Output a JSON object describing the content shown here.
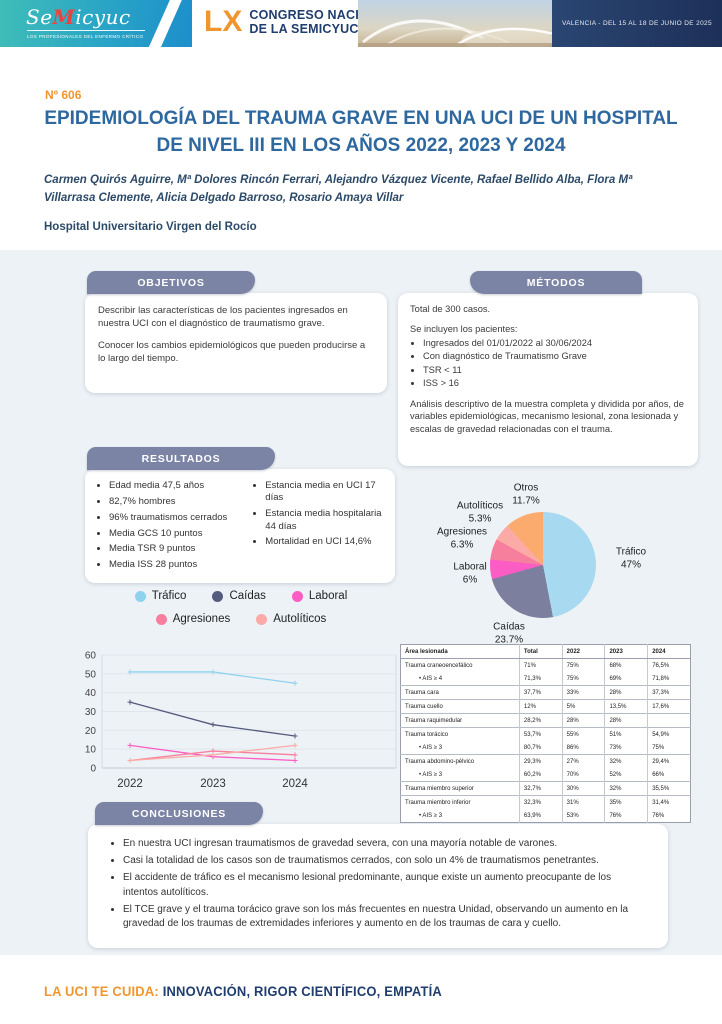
{
  "header": {
    "logo": {
      "name_se": "Se",
      "name_m": "M",
      "name_rest": "icyuc",
      "tagline": "LOS PROFESIONALES DEL ENFERMO CRÍTICO"
    },
    "congress": {
      "numeral": "LX",
      "line1": "CONGRESO NACIONAL",
      "line2": "DE LA SEMICYUC"
    },
    "banner": "VALENCIA - DEL 15 AL 18 DE JUNIO DE 2025"
  },
  "poster": {
    "number": "Nº 606",
    "title": "EPIDEMIOLOGÍA DEL TRAUMA GRAVE EN UNA UCI DE UN HOSPITAL DE NIVEL III EN LOS AÑOS 2022, 2023 Y 2024",
    "authors": "Carmen Quirós Aguirre, Mª Dolores Rincón Ferrari, Alejandro Vázquez Vicente, Rafael Bellido Alba, Flora Mª Villarrasa Clemente, Alicia Delgado Barroso, Rosario Amaya Villar",
    "affiliation": "Hospital Universitario Virgen del Rocío"
  },
  "sections": {
    "objetivos": {
      "title": "OBJETIVOS",
      "paragraphs": [
        "Describir las características de los pacientes ingresados en nuestra UCI con el diagnóstico de traumatismo grave.",
        "Conocer los cambios epidemiológicos que pueden producirse a lo largo del tiempo."
      ]
    },
    "metodos": {
      "title": "MÉTODOS",
      "total": "Total de 300 casos.",
      "include_intro": "Se incluyen los pacientes:",
      "bullets": [
        "Ingresados del 01/01/2022 al 30/06/2024",
        "Con diagnóstico de Traumatismo Grave",
        "TSR < 11",
        "ISS > 16"
      ],
      "analysis": "Análisis descriptivo de la muestra completa y dividida por años, de variables epidemiológicas, mecanismo lesional, zona lesionada y escalas de gravedad relacionadas con el trauma."
    },
    "resultados": {
      "title": "RESULTADOS",
      "bullets_left": [
        "Edad media 47,5 años",
        "82,7% hombres",
        "96% traumatismos cerrados",
        "Media GCS 10 puntos",
        "Media TSR 9 puntos",
        "Media ISS 28 puntos"
      ],
      "bullets_right": [
        "Estancia media en UCI 17 días",
        "Estancia media hospitalaria 44 días",
        "Mortalidad en UCI 14,6%"
      ]
    },
    "conclusiones": {
      "title": "CONCLUSIONES",
      "bullets": [
        "En nuestra UCI ingresan traumatismos de gravedad severa, con una mayoría notable de varones.",
        "Casi la totalidad de los casos son de traumatismos cerrados, con solo un 4% de traumatismos penetrantes.",
        "El accidente de tráfico es el mecanismo lesional predominante, aunque existe un aumento preocupante de los intentos autolíticos.",
        "El TCE grave y el trauma torácico grave son los más frecuentes en nuestra Unidad, observando un aumento en la gravedad de los traumas de extremidades inferiores y aumento en de los traumas de cara y cuello."
      ]
    }
  },
  "chart_data": [
    {
      "type": "pie",
      "title": "",
      "slices": [
        {
          "label": "Tráfico",
          "pct": "47%",
          "value": 47,
          "color": "#a7d9f0"
        },
        {
          "label": "Caídas",
          "pct": "23.7%",
          "value": 23.7,
          "color": "#7c7f9d"
        },
        {
          "label": "Laboral",
          "pct": "6%",
          "value": 6,
          "color": "#fb5dc4"
        },
        {
          "label": "Agresiones",
          "pct": "6.3%",
          "value": 6.3,
          "color": "#f77f9e"
        },
        {
          "label": "Autolíticos",
          "pct": "5.3%",
          "value": 5.3,
          "color": "#fcaaa5"
        },
        {
          "label": "Otros",
          "pct": "11.7%",
          "value": 11.7,
          "color": "#fcab6f"
        }
      ]
    },
    {
      "type": "line",
      "x": [
        "2022",
        "2023",
        "2024"
      ],
      "ylim": [
        0,
        60
      ],
      "yticks": [
        0,
        10,
        20,
        30,
        40,
        50,
        60
      ],
      "grid": true,
      "legend_position": "top",
      "series": [
        {
          "name": "Tráfico",
          "color": "#8ed2ef",
          "values": [
            51,
            51,
            45
          ]
        },
        {
          "name": "Caídas",
          "color": "#555b7e",
          "values": [
            35,
            23,
            17
          ]
        },
        {
          "name": "Laboral",
          "color": "#fb5dc4",
          "values": [
            12,
            6,
            4
          ]
        },
        {
          "name": "Agresiones",
          "color": "#f77f9e",
          "values": [
            4,
            9,
            7
          ]
        },
        {
          "name": "Autolíticos",
          "color": "#fcaaa5",
          "values": [
            4,
            7,
            12
          ]
        }
      ]
    },
    {
      "type": "table",
      "headers": [
        "Área lesionada",
        "Total",
        "2022",
        "2023",
        "2024"
      ],
      "rows": [
        {
          "label": "Trauma craneoencefálico",
          "indent": false,
          "values": [
            "71%",
            "75%",
            "68%",
            "76,5%"
          ]
        },
        {
          "label": "AIS ≥ 4",
          "indent": true,
          "values": [
            "71,3%",
            "75%",
            "69%",
            "71,8%"
          ]
        },
        {
          "label": "Trauma cara",
          "indent": false,
          "values": [
            "37,7%",
            "33%",
            "28%",
            "37,3%"
          ]
        },
        {
          "label": "Trauma cuello",
          "indent": false,
          "values": [
            "12%",
            "5%",
            "13,5%",
            "17,6%"
          ]
        },
        {
          "label": "Trauma raquimedular",
          "indent": false,
          "values": [
            "28,2%",
            "28%",
            "28%",
            ""
          ]
        },
        {
          "label": "Trauma torácico",
          "indent": false,
          "values": [
            "53,7%",
            "55%",
            "51%",
            "54,9%"
          ]
        },
        {
          "label": "AIS ≥ 3",
          "indent": true,
          "values": [
            "80,7%",
            "86%",
            "73%",
            "75%"
          ]
        },
        {
          "label": "Trauma abdomino-pélvico",
          "indent": false,
          "values": [
            "29,3%",
            "27%",
            "32%",
            "29,4%"
          ]
        },
        {
          "label": "AIS ≥ 3",
          "indent": true,
          "values": [
            "60,2%",
            "70%",
            "52%",
            "66%"
          ]
        },
        {
          "label": "Trauma miembro superior",
          "indent": false,
          "values": [
            "32,7%",
            "30%",
            "32%",
            "35,5%"
          ]
        },
        {
          "label": "Trauma miembro inferior",
          "indent": false,
          "values": [
            "32,3%",
            "31%",
            "35%",
            "31,4%"
          ]
        },
        {
          "label": "AIS ≥ 3",
          "indent": true,
          "values": [
            "63,9%",
            "53%",
            "76%",
            "76%"
          ]
        }
      ]
    }
  ],
  "footer": {
    "prefix": "LA UCI TE CUIDA:",
    "tagline": "INNOVACIÓN, RIGOR CIENTÍFICO, EMPATÍA"
  },
  "colors": {
    "accent_orange": "#f0962e",
    "title_blue": "#2e689f",
    "navy": "#1f3d6e",
    "tab_slate": "#7b84a4",
    "page_bg": "#edf2f6"
  }
}
